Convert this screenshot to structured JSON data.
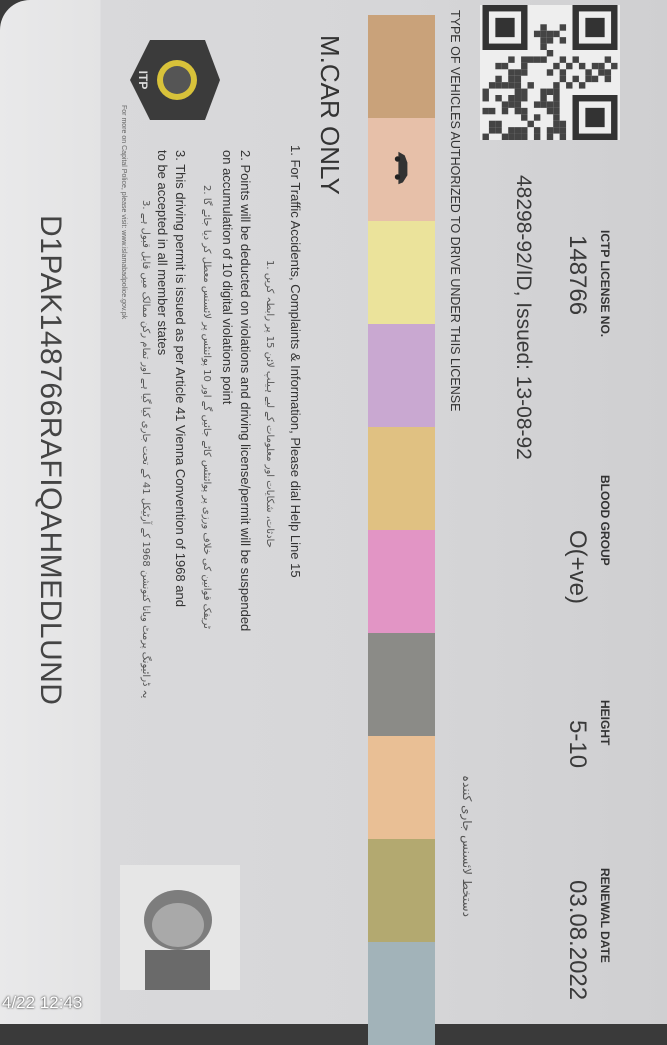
{
  "card": {
    "labels": {
      "license_no": "ICTP LICENSE NO.",
      "blood_group": "BLOOD GROUP",
      "height": "HEIGHT",
      "renewal_date": "RENEWAL DATE"
    },
    "values": {
      "license_no": "148766",
      "blood_group": "O(+ve)",
      "height": "5-10",
      "renewal_date": "03.08.2022"
    },
    "cnic_issued": "48298-92/ID, Issued: 13-08-92",
    "signature_urdu": "دستخط لائسنس جاری کنندہ",
    "vehicle_types_heading": "TYPE OF VEHICLES AUTHORIZED TO DRIVE UNDER THIS LICENSE",
    "vehicle_colors": [
      "#c9a27a",
      "#e7c0a9",
      "#ebe39b",
      "#c9a8d1",
      "#e0c182",
      "#e295c5",
      "#8b8b87",
      "#e9bf95",
      "#b3a970",
      "#a2b3b9"
    ],
    "vehicle_class": "M.CAR ONLY",
    "logo_text": "ITP",
    "instructions": [
      "1. For Traffic Accidents, Complaints & Information, Please dial Help Line 15",
      "1. حادثات، شکایات اور معلومات کے لیے ہیلپ لائن 15 پر رابطہ کریں",
      "2. Points will be deducted on violations and driving license/permit will be suspended",
      "on accumulation of 10 digital violations point",
      "2. ٹریفک قوانین کی خلاف ورزی پر پوائنٹس کاٹے جائیں گے اور 10 پوائنٹس پر لائسنس معطل کر دیا جائے گا",
      "3. This driving permit is issued as per Article 41 Vienna Convention of 1968 and",
      "to be accepted in all member states",
      "3. یہ ڈرائیونگ پرمٹ ویانا کنونشن 1968 کے آرٹیکل 41 کے تحت جاری کیا گیا ہے اور تمام رکن ممالک میں قابل قبول ہے",
      "For more on Capital Police, please visit: www.islamabadpolice.gov.pk"
    ],
    "machine_code": "D1PAK148766RAFIQAHMEDLUND"
  },
  "timestamp": "4/22 12:43"
}
